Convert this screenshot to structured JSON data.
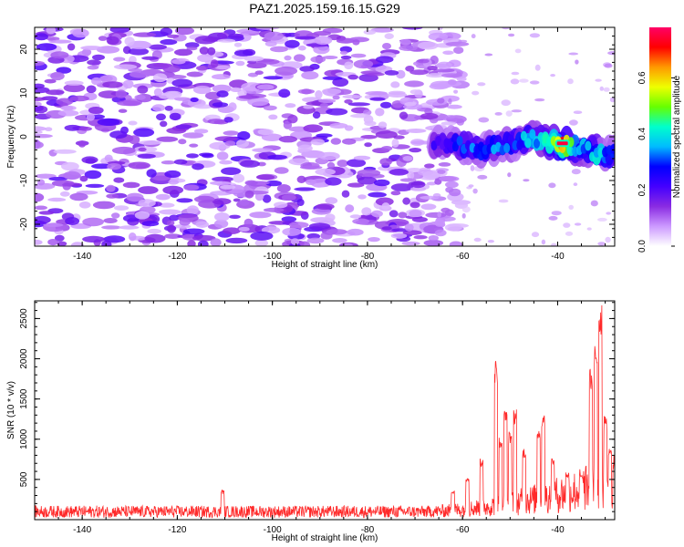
{
  "figure": {
    "title": "PAZ1.2025.159.16.15.G29"
  },
  "chart_data": [
    {
      "type": "heatmap",
      "title": "PAZ1.2025.159.16.15.G29",
      "xlabel": "Height of straight line (km)",
      "ylabel": "Frequency (Hz)",
      "xlim": [
        -150,
        -28
      ],
      "ylim": [
        -25,
        25
      ],
      "x_ticks": [
        -140,
        -120,
        -100,
        -80,
        -60,
        -40
      ],
      "y_ticks": [
        20,
        10,
        0,
        -10,
        -20
      ],
      "colorbar": {
        "label": "Normalized spectral amplitude",
        "range": [
          0,
          0.78
        ],
        "ticks": [
          0.0,
          0.2,
          0.4,
          0.6
        ],
        "colors": [
          "#ffffff",
          "#cc99ff",
          "#8a2be2",
          "#4400ff",
          "#0000ff",
          "#00bbff",
          "#00ffcc",
          "#66ff00",
          "#eeff00",
          "#ff9900",
          "#ff0000",
          "#ff0066"
        ]
      },
      "noise": {
        "x_range": [
          -150,
          -66
        ],
        "y_range": [
          -25,
          25
        ],
        "amplitude_range": [
          0.0,
          0.16
        ]
      },
      "signal_track": {
        "description_points": [
          {
            "x": -66,
            "y": -1.5,
            "amp": 0.22
          },
          {
            "x": -60,
            "y": -2.0,
            "amp": 0.3
          },
          {
            "x": -55,
            "y": -3.0,
            "amp": 0.32
          },
          {
            "x": -50,
            "y": -1.5,
            "amp": 0.3
          },
          {
            "x": -45,
            "y": -0.5,
            "amp": 0.38
          },
          {
            "x": -42,
            "y": -1.0,
            "amp": 0.45
          },
          {
            "x": -39,
            "y": -1.5,
            "amp": 0.75
          },
          {
            "x": -36,
            "y": -2.5,
            "amp": 0.35
          },
          {
            "x": -32,
            "y": -3.5,
            "amp": 0.45
          },
          {
            "x": -28,
            "y": -4.0,
            "amp": 0.3
          }
        ]
      }
    },
    {
      "type": "line",
      "title": "",
      "xlabel": "Height of straight line (km)",
      "ylabel": "SNR (10 * v/v)",
      "xlim": [
        -150,
        -28
      ],
      "ylim": [
        0,
        2720
      ],
      "x_ticks": [
        -140,
        -120,
        -100,
        -80,
        -60,
        -40
      ],
      "y_ticks": [
        500,
        1000,
        1500,
        2000,
        2500
      ],
      "series": [
        {
          "color": "#ff2a2a",
          "baseline": 120,
          "peaks": [
            {
              "x": -110.5,
              "y": 370
            },
            {
              "x": -62,
              "y": 380
            },
            {
              "x": -59,
              "y": 560
            },
            {
              "x": -56,
              "y": 760
            },
            {
              "x": -53,
              "y": 1990
            },
            {
              "x": -52,
              "y": 1050
            },
            {
              "x": -51,
              "y": 1420
            },
            {
              "x": -50,
              "y": 1100
            },
            {
              "x": -49,
              "y": 1390
            },
            {
              "x": -47,
              "y": 900
            },
            {
              "x": -44,
              "y": 1160
            },
            {
              "x": -43,
              "y": 1350
            },
            {
              "x": -41,
              "y": 780
            },
            {
              "x": -38,
              "y": 600
            },
            {
              "x": -35,
              "y": 560
            },
            {
              "x": -33,
              "y": 1900
            },
            {
              "x": -32,
              "y": 2200
            },
            {
              "x": -31,
              "y": 2700
            },
            {
              "x": -30,
              "y": 1300
            },
            {
              "x": -29,
              "y": 900
            },
            {
              "x": -28,
              "y": 700
            }
          ]
        }
      ]
    }
  ]
}
